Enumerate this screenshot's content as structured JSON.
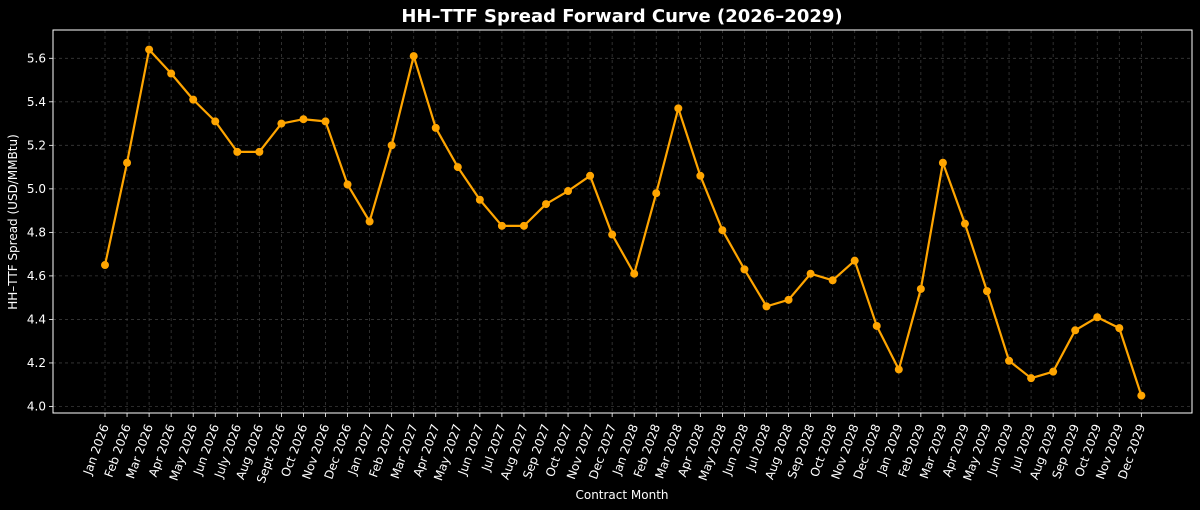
{
  "chart_data": {
    "type": "line",
    "title": "HH–TTF Spread Forward Curve (2026–2029)",
    "xlabel": "Contract Month",
    "ylabel": "HH–TTF Spread (USD/MMBtu)",
    "ylim": [
      3.97,
      5.73
    ],
    "yticks": [
      4.0,
      4.2,
      4.4,
      4.6,
      4.8,
      5.0,
      5.2,
      5.4,
      5.6
    ],
    "grid": true,
    "line_color": "#ffa500",
    "background": "#000000",
    "categories": [
      "Jan 2026",
      "Feb 2026",
      "Mar 2026",
      "Apr 2026",
      "May 2026",
      "Jun 2026",
      "July 2026",
      "Aug 2026",
      "Sept 2026",
      "Oct 2026",
      "Nov 2026",
      "Dec 2026",
      "Jan 2027",
      "Feb 2027",
      "Mar 2027",
      "Apr 2027",
      "May 2027",
      "Jun 2027",
      "Jul 2027",
      "Aug 2027",
      "Sep 2027",
      "Oct 2027",
      "Nov 2027",
      "Dec 2027",
      "Jan 2028",
      "Feb 2028",
      "Mar 2028",
      "Apr 2028",
      "May 2028",
      "Jun 2028",
      "Jul 2028",
      "Aug 2028",
      "Sep 2028",
      "Oct 2028",
      "Nov 2028",
      "Dec 2028",
      "Jan 2029",
      "Feb 2029",
      "Mar 2029",
      "Apr 2029",
      "May 2029",
      "Jun 2029",
      "Jul 2029",
      "Aug 2029",
      "Sep 2029",
      "Oct 2029",
      "Nov 2029",
      "Dec 2029"
    ],
    "series": [
      {
        "values": [
          4.65,
          5.12,
          5.64,
          5.53,
          5.41,
          5.31,
          5.17,
          5.17,
          5.3,
          5.32,
          5.31,
          5.02,
          4.85,
          5.2,
          5.61,
          5.28,
          5.1,
          4.95,
          4.83,
          4.83,
          4.93,
          4.99,
          5.06,
          4.79,
          4.61,
          4.98,
          5.37,
          5.06,
          4.81,
          4.63,
          4.46,
          4.49,
          4.61,
          4.58,
          4.67,
          4.37,
          4.17,
          4.54,
          5.12,
          4.84,
          4.53,
          4.21,
          4.13,
          4.16,
          4.35,
          4.41,
          4.36,
          4.05
        ]
      }
    ]
  }
}
